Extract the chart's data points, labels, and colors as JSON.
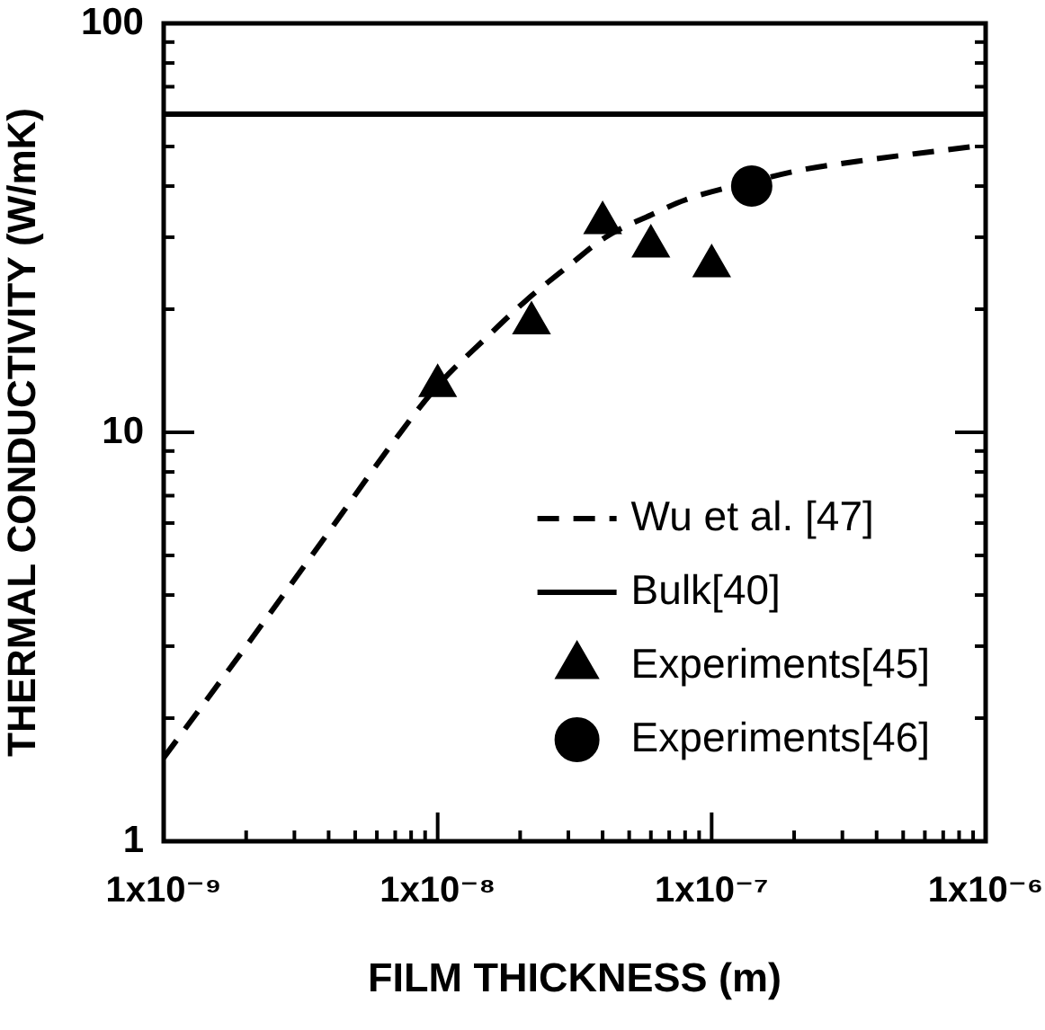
{
  "chart_data": {
    "type": "scatter",
    "xlabel": "FILM THICKNESS (m)",
    "ylabel": "THERMAL CONDUCTIVITY (W/mK)",
    "log": "xy",
    "xlim": [
      1e-09,
      1e-06
    ],
    "ylim": [
      1,
      100
    ],
    "xticks": [
      {
        "value": 1e-09,
        "label": "1x10⁻⁹"
      },
      {
        "value": 2e-09,
        "label": null
      },
      {
        "value": 3e-09,
        "label": null
      },
      {
        "value": 4e-09,
        "label": null
      },
      {
        "value": 5e-09,
        "label": null
      },
      {
        "value": 6e-09,
        "label": null
      },
      {
        "value": 7e-09,
        "label": null
      },
      {
        "value": 8e-09,
        "label": null
      },
      {
        "value": 9e-09,
        "label": null
      },
      {
        "value": 1e-08,
        "label": "1x10⁻⁸"
      },
      {
        "value": 2e-08,
        "label": null
      },
      {
        "value": 3e-08,
        "label": null
      },
      {
        "value": 4e-08,
        "label": null
      },
      {
        "value": 5e-08,
        "label": null
      },
      {
        "value": 6e-08,
        "label": null
      },
      {
        "value": 7e-08,
        "label": null
      },
      {
        "value": 8e-08,
        "label": null
      },
      {
        "value": 9e-08,
        "label": null
      },
      {
        "value": 1e-07,
        "label": "1x10⁻⁷"
      },
      {
        "value": 2e-07,
        "label": null
      },
      {
        "value": 3e-07,
        "label": null
      },
      {
        "value": 4e-07,
        "label": null
      },
      {
        "value": 5e-07,
        "label": null
      },
      {
        "value": 6e-07,
        "label": null
      },
      {
        "value": 7e-07,
        "label": null
      },
      {
        "value": 8e-07,
        "label": null
      },
      {
        "value": 9e-07,
        "label": null
      },
      {
        "value": 1e-06,
        "label": "1x10⁻⁶"
      }
    ],
    "yticks": [
      1,
      {
        "value": 2,
        "label": null
      },
      {
        "value": 3,
        "label": null
      },
      {
        "value": 4,
        "label": null
      },
      {
        "value": 5,
        "label": null
      },
      {
        "value": 6,
        "label": null
      },
      {
        "value": 7,
        "label": null
      },
      {
        "value": 8,
        "label": null
      },
      {
        "value": 9,
        "label": null
      },
      10,
      {
        "value": 20,
        "label": null
      },
      {
        "value": 30,
        "label": null
      },
      {
        "value": 40,
        "label": null
      },
      {
        "value": 50,
        "label": null
      },
      {
        "value": 60,
        "label": null
      },
      {
        "value": 70,
        "label": null
      },
      {
        "value": 80,
        "label": null
      },
      {
        "value": 90,
        "label": null
      },
      100
    ],
    "legend": "bottom right",
    "series": [
      {
        "name": "Wu et al. [47]",
        "type": "line",
        "color": "#000000",
        "line_style": "dashed",
        "marker": "none",
        "x": [
          1e-09,
          2e-09,
          4e-09,
          7e-09,
          1e-08,
          1.5e-08,
          2.1e-08,
          3e-08,
          4.1e-08,
          6e-08,
          8e-08,
          1.4e-07,
          2.2e-07,
          3.4e-07,
          9e-07
        ],
        "values": [
          1.6,
          3.0,
          5.7,
          9.6,
          13,
          17,
          21,
          25.5,
          30,
          34,
          37,
          41,
          44,
          46,
          50
        ]
      },
      {
        "name": "Bulk[40]",
        "type": "line",
        "color": "#000000",
        "line_style": "solid",
        "marker": "none",
        "x": [
          1e-09,
          1e-06
        ],
        "values": [
          60,
          60
        ]
      },
      {
        "name": "Experiments[45]",
        "type": "scatter",
        "color": "#000000",
        "marker": "triangle",
        "x": [
          1e-08,
          2.2e-08,
          4e-08,
          6e-08,
          1e-07
        ],
        "values": [
          13,
          18.5,
          32.5,
          28.5,
          25.5
        ]
      },
      {
        "name": "Experiments[46]",
        "type": "scatter",
        "color": "#000000",
        "marker": "circle",
        "x": [
          1.4e-07
        ],
        "values": [
          40
        ]
      }
    ]
  }
}
